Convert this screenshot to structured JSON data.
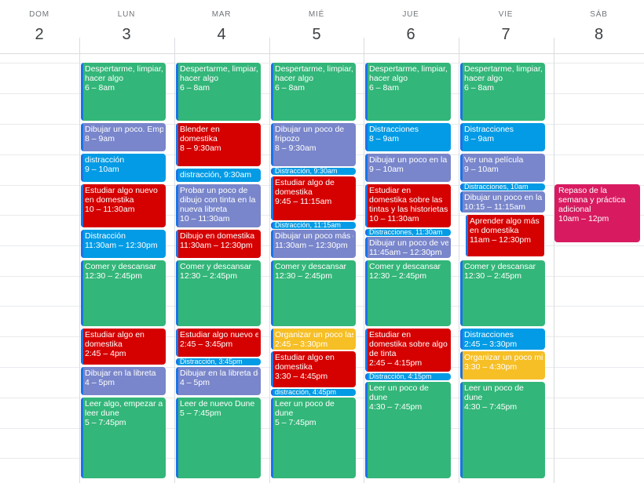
{
  "colors": {
    "green": "#33b679",
    "red": "#d50000",
    "blue": "#039be5",
    "lavender": "#7986cb",
    "yellow": "#f6bf26",
    "pink": "#d81b60",
    "task_stripe": "#1a73e8"
  },
  "days": [
    {
      "dow": "DOM",
      "num": "2"
    },
    {
      "dow": "LUN",
      "num": "3"
    },
    {
      "dow": "MAR",
      "num": "4"
    },
    {
      "dow": "MIÉ",
      "num": "5"
    },
    {
      "dow": "JUE",
      "num": "6"
    },
    {
      "dow": "VIE",
      "num": "7"
    },
    {
      "dow": "SÁB",
      "num": "8"
    }
  ],
  "events": {
    "lun": [
      {
        "title": "Despertarme, limpiar, hacer algo",
        "time": "6 – 8am",
        "color": "green"
      },
      {
        "title": "Dibujar un poco. Empez",
        "time": "8 – 9am",
        "color": "lavender"
      },
      {
        "title": "distracción",
        "time": "9 – 10am",
        "color": "blue"
      },
      {
        "title": "Estudiar algo nuevo en domestika",
        "time": "10 – 11:30am",
        "color": "red"
      },
      {
        "title": "Distracción",
        "time": "11:30am – 12:30pm",
        "color": "blue"
      },
      {
        "title": "Comer y descansar",
        "time": "12:30 – 2:45pm",
        "color": "green"
      },
      {
        "title": "Estudiar algo en domestika",
        "time": "2:45 – 4pm",
        "color": "red"
      },
      {
        "title": "Dibujar en la libreta",
        "time": "4 – 5pm",
        "color": "lavender"
      },
      {
        "title": "Leer algo, empezar a leer dune",
        "time": "5 – 7:45pm",
        "color": "green"
      }
    ],
    "mar": [
      {
        "title": "Despertarme, limpiar, hacer algo",
        "time": "6 – 8am",
        "color": "green"
      },
      {
        "title": "Blender en domestika",
        "time": "8 – 9:30am",
        "color": "red"
      },
      {
        "title": "distracción, 9:30am",
        "time": "",
        "color": "blue"
      },
      {
        "title": "Probar un poco de dibujo con tinta en la nueva libreta",
        "time": "10 – 11:30am",
        "color": "lavender"
      },
      {
        "title": "Dibujo en domestika",
        "time": "11:30am – 12:30pm",
        "color": "red"
      },
      {
        "title": "Comer y descansar",
        "time": "12:30 – 2:45pm",
        "color": "green"
      },
      {
        "title": "Estudiar algo nuevo en",
        "time": "2:45 – 3:45pm",
        "color": "red"
      },
      {
        "title": "Distracción, 3:45pm",
        "time": "",
        "color": "blue"
      },
      {
        "title": "Dibujar en la libreta de",
        "time": "4 – 5pm",
        "color": "lavender"
      },
      {
        "title": "Leer de nuevo Dune",
        "time": "5 – 7:45pm",
        "color": "green"
      }
    ],
    "mie": [
      {
        "title": "Despertarme, limpiar, hacer algo",
        "time": "6 – 8am",
        "color": "green"
      },
      {
        "title": "Dibujar un poco de fripozo",
        "time": "8 – 9:30am",
        "color": "lavender"
      },
      {
        "title": "Distracción, 9:30am",
        "time": "",
        "color": "blue"
      },
      {
        "title": "Estudiar algo de domestika",
        "time": "9:45 – 11:15am",
        "color": "red"
      },
      {
        "title": "Distracción, 11:15am",
        "time": "",
        "color": "blue"
      },
      {
        "title": "Dibujar un poco más de",
        "time": "11:30am – 12:30pm",
        "color": "lavender"
      },
      {
        "title": "Comer y descansar",
        "time": "12:30 – 2:45pm",
        "color": "green"
      },
      {
        "title": "Organizar un poco las c",
        "time": "2:45 – 3:30pm",
        "color": "yellow"
      },
      {
        "title": "Estudiar algo en domestika",
        "time": "3:30 – 4:45pm",
        "color": "red"
      },
      {
        "title": "distracción, 4:45pm",
        "time": "",
        "color": "blue"
      },
      {
        "title": "Leer un poco de dune",
        "time": "5 – 7:45pm",
        "color": "green"
      }
    ],
    "jue": [
      {
        "title": "Despertarme, limpiar, hacer algo",
        "time": "6 – 8am",
        "color": "green"
      },
      {
        "title": "Distracciones",
        "time": "8 – 9am",
        "color": "blue"
      },
      {
        "title": "Dibujar un poco en la lib",
        "time": "9 – 10am",
        "color": "lavender"
      },
      {
        "title": "Estudiar en domestika sobre las tintas y las historietas",
        "time": "10 – 11:30am",
        "color": "red"
      },
      {
        "title": "Distracciones, 11:30am",
        "time": "",
        "color": "blue"
      },
      {
        "title": "Dibujar un poco de vehi",
        "time": "11:45am – 12:30pm",
        "color": "lavender"
      },
      {
        "title": "Comer y descansar",
        "time": "12:30 – 2:45pm",
        "color": "green"
      },
      {
        "title": "Estudiar en domestika sobre algo de tinta",
        "time": "2:45 – 4:15pm",
        "color": "red"
      },
      {
        "title": "Distracción, 4:15pm",
        "time": "",
        "color": "blue"
      },
      {
        "title": "Leer un poco de dune",
        "time": "4:30 – 7:45pm",
        "color": "green"
      }
    ],
    "vie": [
      {
        "title": "Despertarme, limpiar, hacer algo",
        "time": "6 – 8am",
        "color": "green"
      },
      {
        "title": "Distracciones",
        "time": "8 – 9am",
        "color": "blue"
      },
      {
        "title": "Ver una película",
        "time": "9 – 10am",
        "color": "lavender"
      },
      {
        "title": "Distracciones, 10am",
        "time": "",
        "color": "blue"
      },
      {
        "title": "Dibujar un poco en la lib",
        "time": "10:15 – 11:15am",
        "color": "lavender"
      },
      {
        "title": "Aprender algo más en domestika",
        "time": "11am – 12:30pm",
        "color": "red"
      },
      {
        "title": "Comer y descansar",
        "time": "12:30 – 2:45pm",
        "color": "green"
      },
      {
        "title": "Distracciones",
        "time": "2:45 – 3:30pm",
        "color": "blue"
      },
      {
        "title": "Organizar un poco mis c",
        "time": "3:30 – 4:30pm",
        "color": "yellow"
      },
      {
        "title": "Leer un poco de dune",
        "time": "4:30 – 7:45pm",
        "color": "green"
      }
    ],
    "sab": [
      {
        "title": "Repaso de la semana y práctica adicional",
        "time": "10am – 12pm",
        "color": "pink"
      }
    ]
  }
}
